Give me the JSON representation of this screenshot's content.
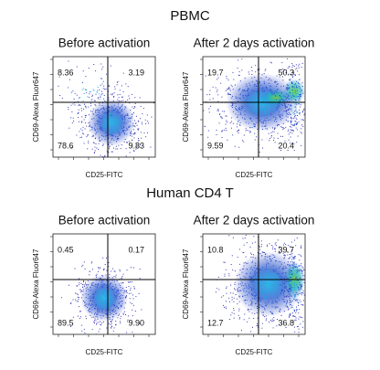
{
  "figure": {
    "sections": [
      {
        "title": "PBMC",
        "panels": [
          {
            "subtitle": "Before activation",
            "y_label": "CD69-Alexa Fluor647",
            "x_label": "CD25-FITC",
            "quadrants": {
              "upper_left": "8.36",
              "upper_right": "3.19",
              "lower_left": "78.6",
              "lower_right": "9.83"
            }
          },
          {
            "subtitle": "After 2 days activation",
            "y_label": "CD69-Alexa Fluor647",
            "x_label": "CD25-FITC",
            "quadrants": {
              "upper_left": "19.7",
              "upper_right": "50.3",
              "lower_left": "9.59",
              "lower_right": "20.4"
            }
          }
        ]
      },
      {
        "title": "Human CD4 T",
        "panels": [
          {
            "subtitle": "Before activation",
            "y_label": "CD69-Alexa Fluor647",
            "x_label": "CD25-FITC",
            "quadrants": {
              "upper_left": "0.45",
              "upper_right": "0.17",
              "lower_left": "89.5",
              "lower_right": "9.90"
            }
          },
          {
            "subtitle": "After 2 days activation",
            "y_label": "CD69-Alexa Fluor647",
            "x_label": "CD25-FITC",
            "quadrants": {
              "upper_left": "10.8",
              "upper_right": "39.7",
              "lower_left": "12.7",
              "lower_right": "36.8"
            }
          }
        ]
      }
    ]
  }
}
